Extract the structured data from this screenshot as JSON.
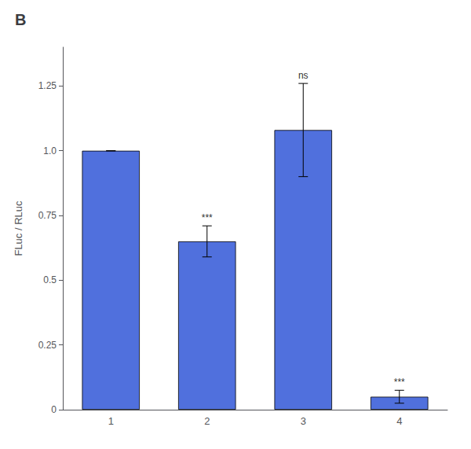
{
  "chart_data": {
    "type": "bar",
    "title": "B",
    "categories": [
      "1",
      "2",
      "3",
      "4"
    ],
    "values": [
      1.0,
      0.65,
      1.08,
      0.05
    ],
    "errors": [
      0.0,
      0.06,
      0.18,
      0.025
    ],
    "annotations": [
      {
        "category": "2",
        "text": "***"
      },
      {
        "category": "3",
        "text": "ns"
      },
      {
        "category": "4",
        "text": "***"
      }
    ],
    "ylabel": "FLuc / RLuc",
    "ylim": [
      0,
      1.4
    ],
    "yticks": [
      0,
      0.25,
      0.5,
      0.75,
      {
        "value": 1.0,
        "label": "1.0"
      },
      1.25
    ],
    "grid": false
  }
}
